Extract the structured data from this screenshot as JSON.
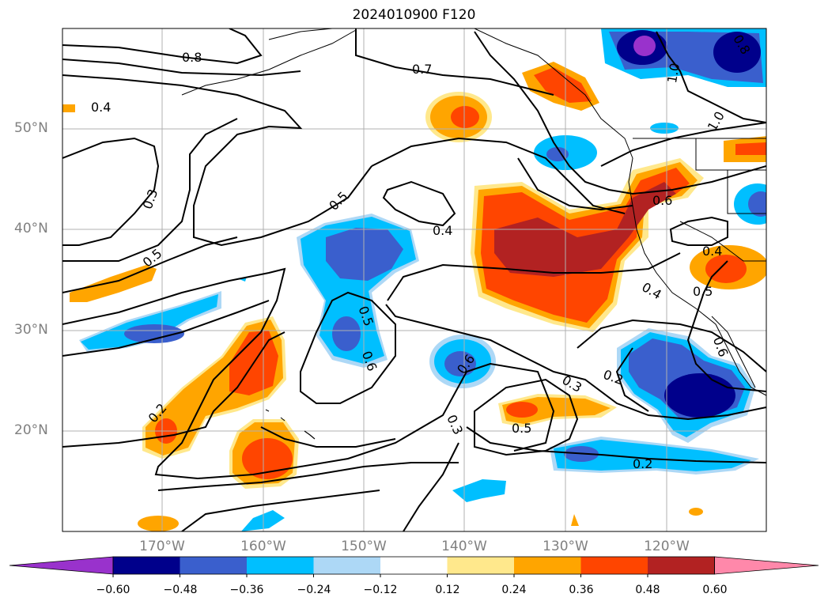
{
  "title": "2024010900 F120",
  "lat_labels": [
    "50°N",
    "40°N",
    "30°N",
    "20°N"
  ],
  "lon_labels": [
    "170°W",
    "160°W",
    "150°W",
    "140°W",
    "130°W",
    "120°W"
  ],
  "contour_labels": [
    "0.8",
    "0.7",
    "0.4",
    "0.3",
    "0.5",
    "0.5",
    "0.4",
    "0.6",
    "0.4",
    "0.5",
    "0.6",
    "0.5",
    "0.4",
    "0.3",
    "0.2",
    "0.2",
    "0.3",
    "0.5",
    "0.2",
    "0.6",
    "0.8",
    "1.0",
    "1.0",
    "0.6"
  ],
  "colorbar": {
    "tick_labels": [
      "−0.60",
      "−0.48",
      "−0.36",
      "−0.24",
      "−0.12",
      "0.12",
      "0.24",
      "0.36",
      "0.48",
      "0.60"
    ],
    "colors": [
      "#9932cc",
      "#00008b",
      "#3a5fcd",
      "#00bfff",
      "#add8f6",
      "#ffffff",
      "#ffe88c",
      "#ffa500",
      "#ff4500",
      "#b22222",
      "#ff88aa"
    ]
  }
}
